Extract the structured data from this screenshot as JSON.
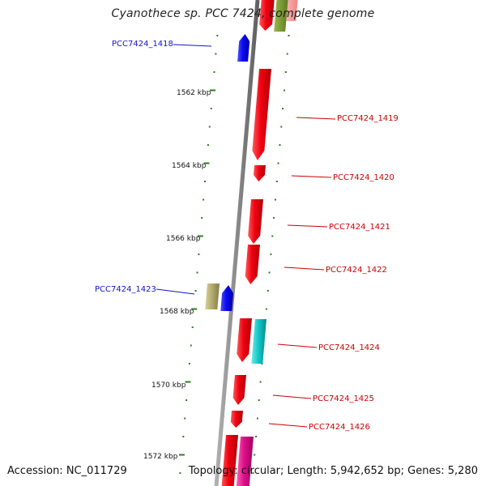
{
  "title": "Cyanothece sp. PCC 7424, complete genome",
  "accession_text": "Accession: NC_011729",
  "topology_text": "Topology: circular; Length: 5,942,652 bp; Genes: 5,280",
  "colors": {
    "backbone": "#8a8a8a",
    "tick": "#2e7d1f",
    "forward_gene": "#e8001a",
    "reverse_gene": "#1010e0",
    "label_forward": "#cc0000",
    "label_reverse": "#1414c8",
    "cyan_feature": "#14c8c8",
    "olive_feature": "#b4ac6e",
    "magenta_feature": "#e0108a"
  },
  "scale_labels": [
    {
      "id": "1562",
      "text": "1562 kbp"
    },
    {
      "id": "1564",
      "text": "1564 kbp"
    },
    {
      "id": "1566",
      "text": "1566 kbp"
    },
    {
      "id": "1568",
      "text": "1568 kbp"
    },
    {
      "id": "1570",
      "text": "1570 kbp"
    },
    {
      "id": "1572",
      "text": "1572 kbp"
    }
  ],
  "genes": [
    {
      "id": "PCC7424_1418",
      "label": "PCC7424_1418",
      "strand": "reverse"
    },
    {
      "id": "PCC7424_1419",
      "label": "PCC7424_1419",
      "strand": "forward"
    },
    {
      "id": "PCC7424_1420",
      "label": "PCC7424_1420",
      "strand": "forward"
    },
    {
      "id": "PCC7424_1421",
      "label": "PCC7424_1421",
      "strand": "forward"
    },
    {
      "id": "PCC7424_1422",
      "label": "PCC7424_1422",
      "strand": "forward"
    },
    {
      "id": "PCC7424_1423",
      "label": "PCC7424_1423",
      "strand": "reverse"
    },
    {
      "id": "PCC7424_1424",
      "label": "PCC7424_1424",
      "strand": "forward"
    },
    {
      "id": "PCC7424_1425",
      "label": "PCC7424_1425",
      "strand": "forward"
    },
    {
      "id": "PCC7424_1426",
      "label": "PCC7424_1426",
      "strand": "forward"
    }
  ]
}
